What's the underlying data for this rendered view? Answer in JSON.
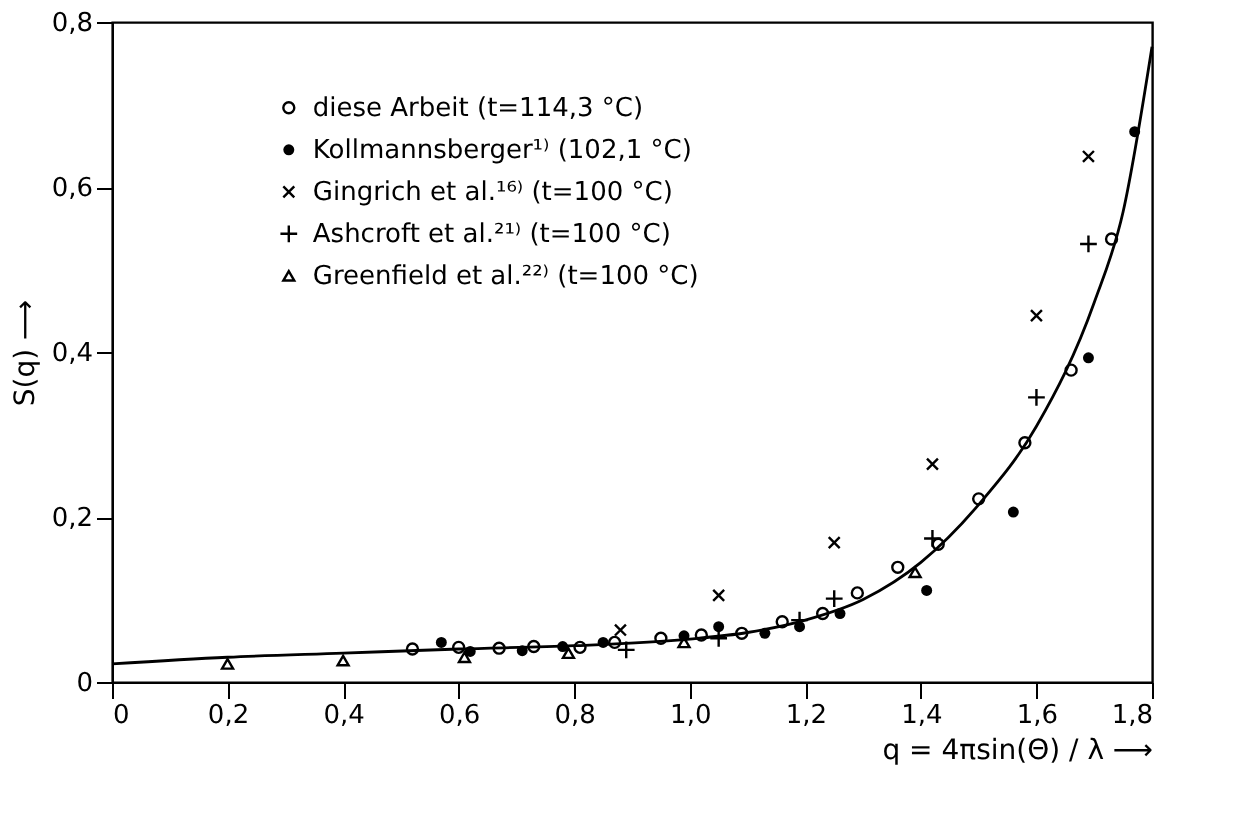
{
  "chart_data": {
    "type": "scatter",
    "xlabel": "q = 4πsin(Θ) / λ  ⟶",
    "ylabel": "S(q)  ⟶",
    "xlim": [
      0,
      1.8
    ],
    "ylim": [
      0,
      0.8
    ],
    "xticks": [
      0,
      {
        "value": 0.2,
        "label": "0,2"
      },
      {
        "value": 0.4,
        "label": "0,4"
      },
      {
        "value": 0.6,
        "label": "0,6"
      },
      {
        "value": 0.8,
        "label": "0,8"
      },
      {
        "value": 1.0,
        "label": "1,0"
      },
      {
        "value": 1.2,
        "label": "1,2"
      },
      {
        "value": 1.4,
        "label": "1,4"
      },
      {
        "value": 1.6,
        "label": "1,6"
      },
      {
        "value": 1.8,
        "label": "1,8"
      }
    ],
    "yticks": [
      0,
      {
        "value": 0.2,
        "label": "0,2"
      },
      {
        "value": 0.4,
        "label": "0,4"
      },
      {
        "value": 0.6,
        "label": "0,6"
      },
      {
        "value": 0.8,
        "label": "0,8"
      }
    ],
    "grid": false,
    "legend": "top left",
    "series": [
      {
        "type": "line",
        "color": "#000000",
        "marker": "none",
        "line_style": "solid",
        "x": [
          0,
          0.2,
          0.4,
          0.6,
          0.8,
          1.0,
          1.1,
          1.2,
          1.3,
          1.4,
          1.5,
          1.6,
          1.7,
          1.75,
          1.8
        ],
        "values": [
          0.022,
          0.03,
          0.035,
          0.04,
          0.044,
          0.052,
          0.06,
          0.075,
          0.1,
          0.145,
          0.215,
          0.31,
          0.46,
          0.57,
          0.77
        ]
      },
      {
        "name": "diese Arbeit (t=114,3 °C)",
        "color": "#000000",
        "marker": "circle",
        "x": [
          0.52,
          0.6,
          0.67,
          0.73,
          0.81,
          0.87,
          0.95,
          1.02,
          1.09,
          1.16,
          1.23,
          1.29,
          1.36,
          1.43,
          1.5,
          1.58,
          1.66,
          1.73
        ],
        "values": [
          0.04,
          0.042,
          0.041,
          0.043,
          0.042,
          0.048,
          0.053,
          0.057,
          0.059,
          0.073,
          0.083,
          0.108,
          0.139,
          0.167,
          0.222,
          0.29,
          0.378,
          0.537
        ]
      },
      {
        "name": "Kollmannsberger¹⁾ (102,1 °C)",
        "color": "#000000",
        "marker": "circle-filled",
        "x": [
          0.57,
          0.62,
          0.71,
          0.78,
          0.85,
          0.99,
          1.05,
          1.13,
          1.19,
          1.26,
          1.41,
          1.56,
          1.69,
          1.77
        ],
        "values": [
          0.048,
          0.037,
          0.038,
          0.043,
          0.048,
          0.056,
          0.067,
          0.059,
          0.067,
          0.083,
          0.111,
          0.206,
          0.393,
          0.667
        ]
      },
      {
        "name": "Gingrich et al.¹⁶⁾ (t=100 °C)",
        "color": "#000000",
        "marker": "cross",
        "x": [
          0.88,
          1.05,
          1.25,
          1.42,
          1.6,
          1.69
        ],
        "values": [
          0.063,
          0.105,
          0.169,
          0.264,
          0.444,
          0.637
        ]
      },
      {
        "name": "Ashcroft et al.²¹⁾ (t=100 °C)",
        "color": "#000000",
        "marker": "plus",
        "x": [
          0.89,
          1.05,
          1.19,
          1.25,
          1.42,
          1.6,
          1.69
        ],
        "values": [
          0.039,
          0.053,
          0.075,
          0.101,
          0.174,
          0.345,
          0.531
        ]
      },
      {
        "name": "Greenfield et al.²²⁾ (t=100 °C)",
        "color": "#000000",
        "marker": "triangle",
        "x": [
          0.2,
          0.4,
          0.61,
          0.79,
          0.99,
          1.39
        ],
        "values": [
          0.022,
          0.026,
          0.03,
          0.035,
          0.048,
          0.133
        ]
      }
    ]
  }
}
